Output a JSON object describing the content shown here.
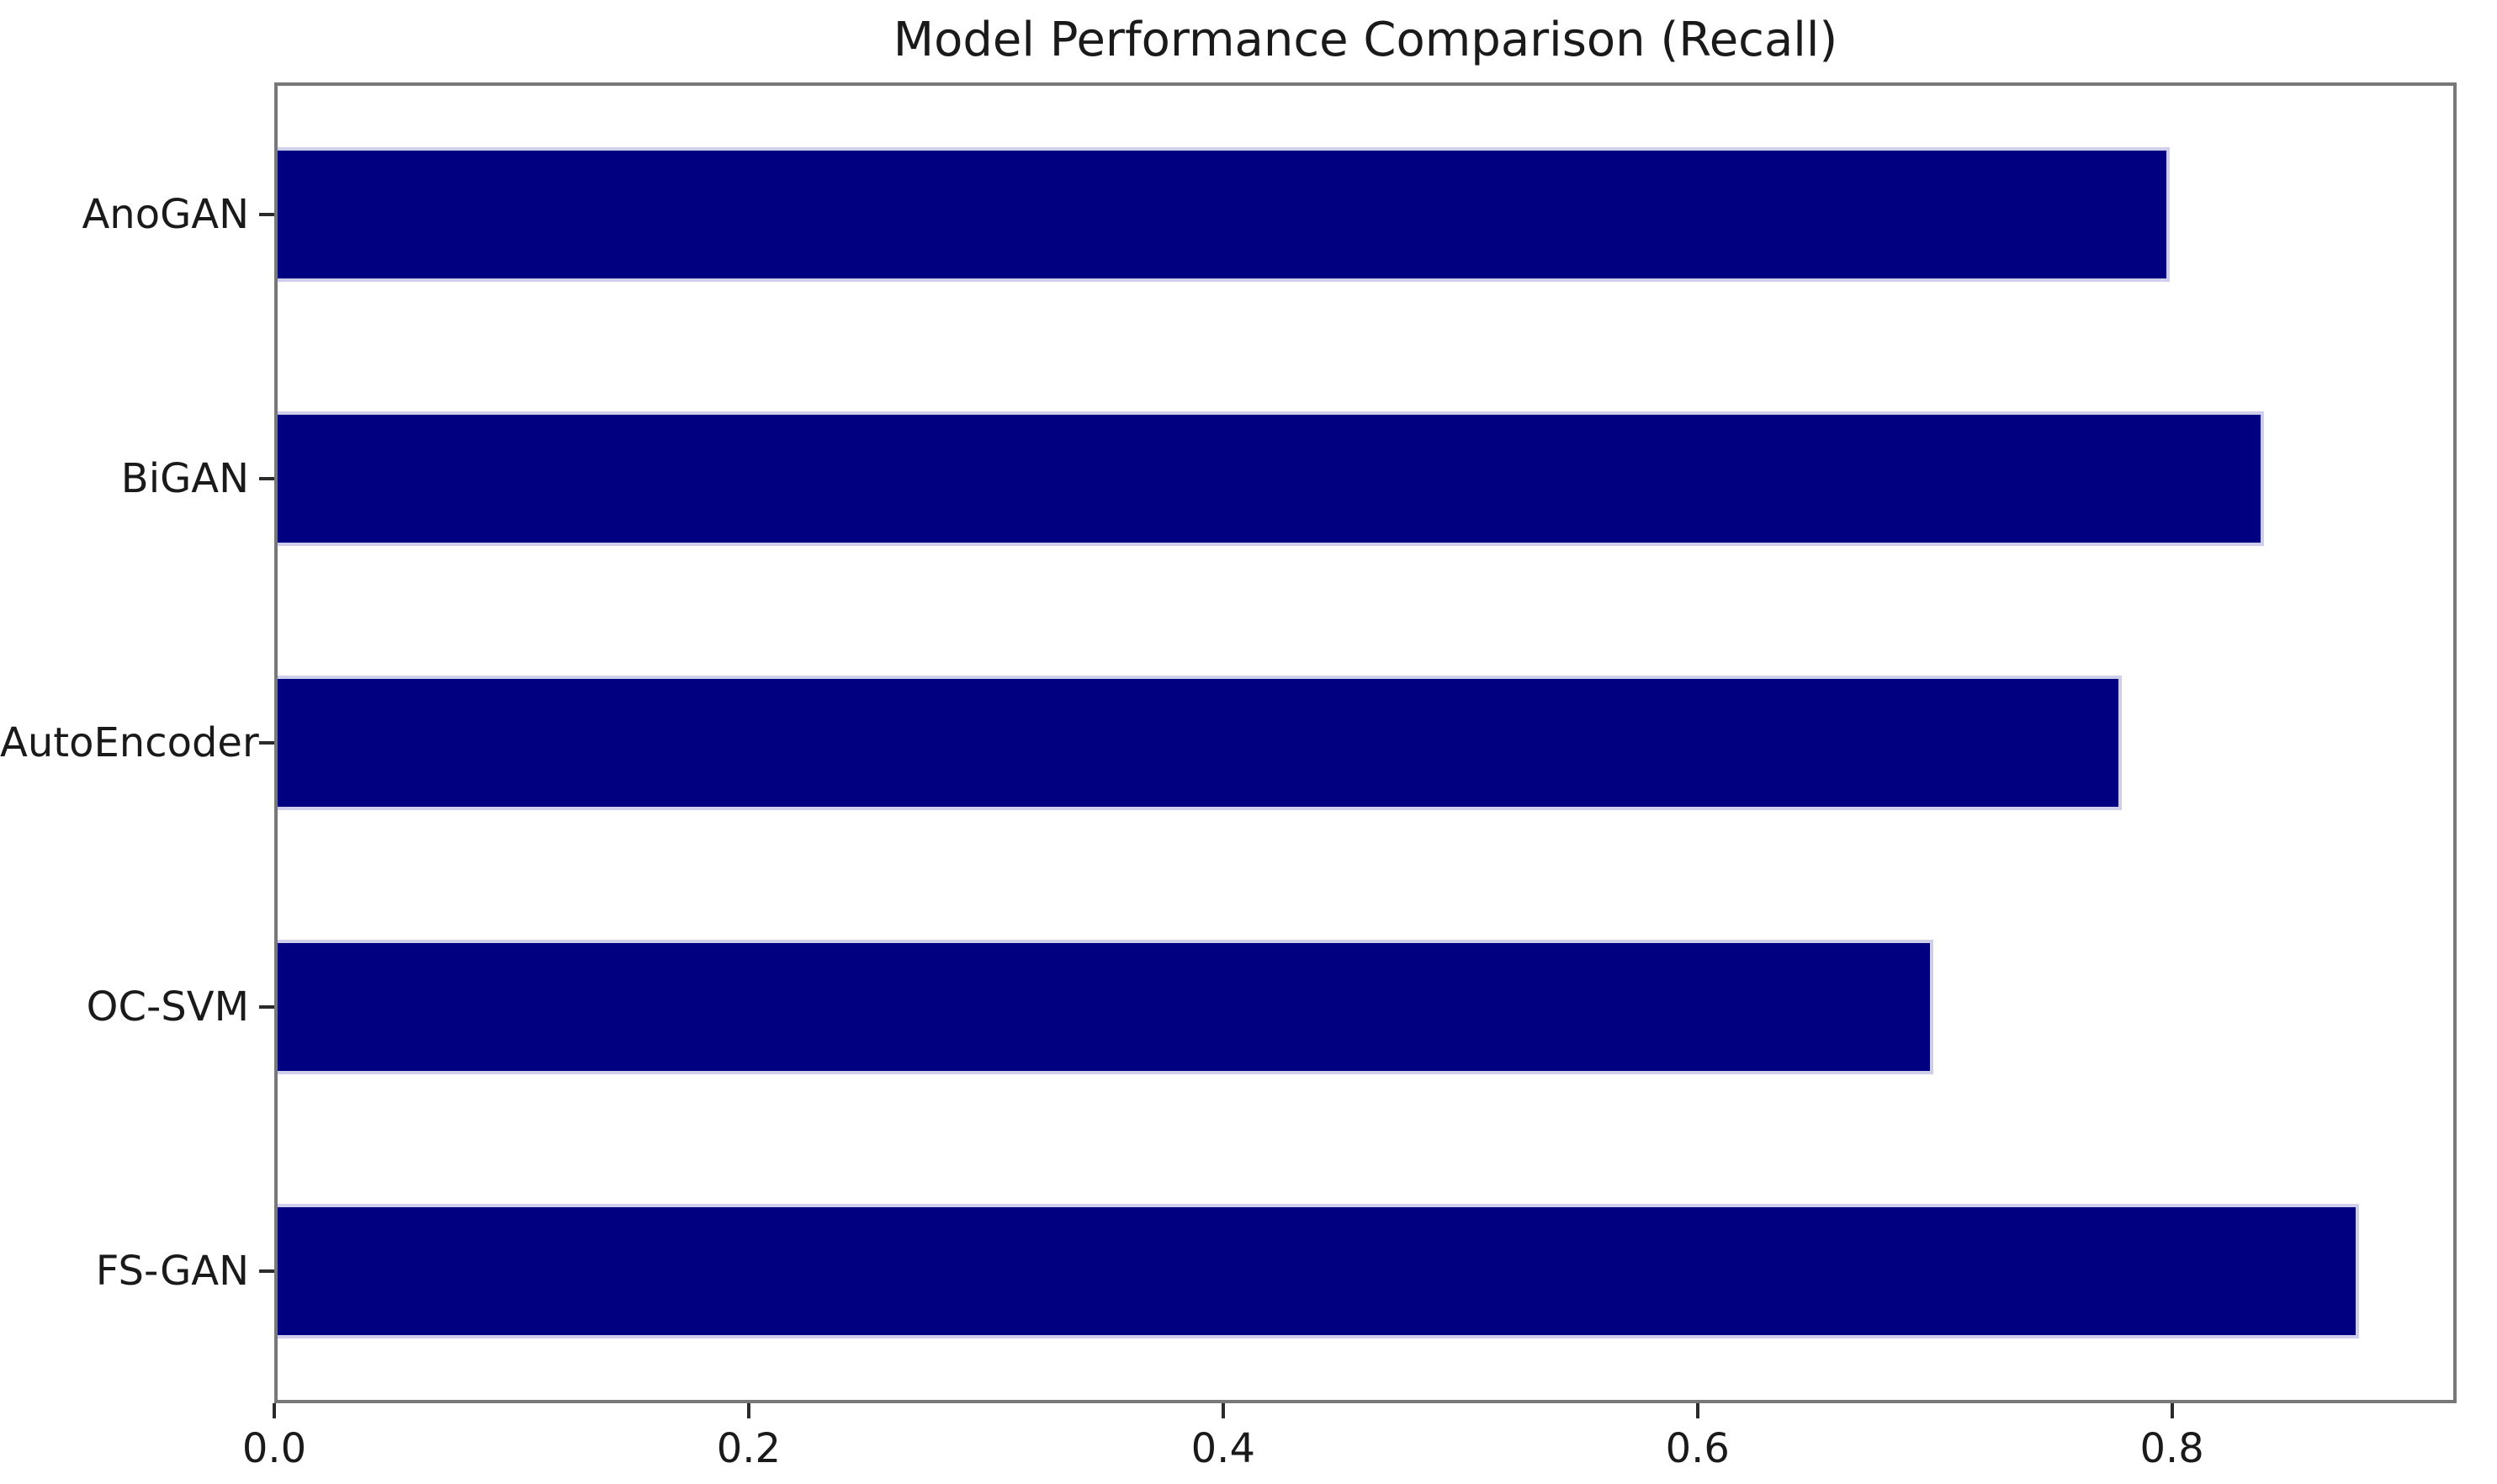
{
  "chart_data": {
    "type": "bar",
    "orientation": "horizontal",
    "title": "Model Performance Comparison (Recall)",
    "categories": [
      "AnoGAN",
      "BiGAN",
      "AutoEncoder",
      "OC-SVM",
      "FS-GAN"
    ],
    "values": [
      0.8,
      0.84,
      0.78,
      0.7,
      0.88
    ],
    "xlabel": "",
    "ylabel": "",
    "xlim": [
      0.0,
      0.92
    ],
    "xticks": [
      0.0,
      0.2,
      0.4,
      0.6,
      0.8
    ],
    "xtick_labels": [
      "0.0",
      "0.2",
      "0.4",
      "0.6",
      "0.8"
    ],
    "grid": false,
    "legend": false,
    "colors": {
      "bar_fill": "#000080",
      "bar_edge": "#cfcfec",
      "spine": "#787878",
      "tick_mark": "#2b2b2b",
      "text": "#1a1a1a",
      "background": "#ffffff"
    }
  }
}
